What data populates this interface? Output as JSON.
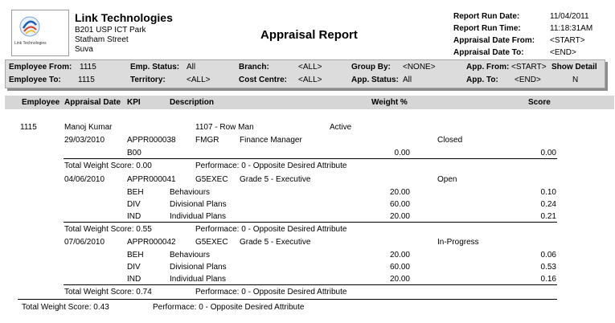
{
  "company": {
    "name": "Link Technologies",
    "address1": "B201 USP ICT Park",
    "address2": "Statham Street",
    "address3": "Suva",
    "logo_text": "Link Technologies"
  },
  "report": {
    "title": "Appraisal Report",
    "meta": {
      "run_date_label": "Report Run Date:",
      "run_date_value": "11/04/2011",
      "run_time_label": "Report Run Time:",
      "run_time_value": "11:18:31AM",
      "date_from_label": "Appraisal Date From:",
      "date_from_value": "<START>",
      "date_to_label": "Appraisal Date To:",
      "date_to_value": "<END>"
    }
  },
  "filters": {
    "emp_from_label": "Employee From:",
    "emp_from_value": "1115",
    "emp_to_label": "Employee To:",
    "emp_to_value": "1115",
    "status_label": "Emp. Status:",
    "status_value": "All",
    "territory_label": "Territory:",
    "territory_value": "<ALL>",
    "branch_label": "Branch:",
    "branch_value": "<ALL>",
    "cost_centre_label": "Cost Centre:",
    "cost_centre_value": "<ALL>",
    "group_by_label": "Group By:",
    "group_by_value": "<NONE>",
    "app_status_label": "App. Status:",
    "app_status_value": "All",
    "app_from_label": "App. From:",
    "app_from_value": "<START>",
    "app_to_label": "App. To:",
    "app_to_value": "<END>",
    "show_detail_label": "Show Detail",
    "show_detail_value": "N"
  },
  "columns": {
    "employee": "Employee",
    "appraisal_date": "Appraisal Date",
    "kpi": "KPI",
    "description": "Description",
    "weight": "Weight %",
    "score": "Score"
  },
  "employee": {
    "id": "1115",
    "name": "Manoj Kumar",
    "position": "1107 - Row Man",
    "status": "Active"
  },
  "appraisals": [
    {
      "date": "29/03/2010",
      "number": "APPR000038",
      "code": "FMGR",
      "title": "Finance Manager",
      "status": "Closed",
      "kpis": [
        {
          "code": "B00",
          "desc": "",
          "weight": "0.00",
          "score": "0.00"
        }
      ],
      "total": "Total Weight Score:  0.00",
      "performance": "Performace: 0 - Opposite Desired Attribute"
    },
    {
      "date": "04/06/2010",
      "number": "APPR000041",
      "code": "G5EXEC",
      "title": "Grade 5 - Executive",
      "status": "Open",
      "kpis": [
        {
          "code": "BEH",
          "desc": "Behaviours",
          "weight": "20.00",
          "score": "0.10"
        },
        {
          "code": "DIV",
          "desc": "Divisional Plans",
          "weight": "60.00",
          "score": "0.24"
        },
        {
          "code": "IND",
          "desc": "Individual Plans",
          "weight": "20.00",
          "score": "0.21"
        }
      ],
      "total": "Total Weight Score:  0.55",
      "performance": "Performace: 0 - Opposite Desired Attribute"
    },
    {
      "date": "07/06/2010",
      "number": "APPR000042",
      "code": "G5EXEC",
      "title": "Grade 5 - Executive",
      "status": "In-Progress",
      "kpis": [
        {
          "code": "BEH",
          "desc": "Behaviours",
          "weight": "20.00",
          "score": "0.06"
        },
        {
          "code": "DIV",
          "desc": "Divisional Plans",
          "weight": "60.00",
          "score": "0.53"
        },
        {
          "code": "IND",
          "desc": "Individual Plans",
          "weight": "20.00",
          "score": "0.16"
        }
      ],
      "total": "Total Weight Score:  0.74",
      "performance": "Performace: 0 - Opposite Desired Attribute"
    }
  ],
  "grand_total": {
    "total": "Total Weight Score:  0.43",
    "performance": "Performace: 0 - Opposite Desired Attribute"
  }
}
